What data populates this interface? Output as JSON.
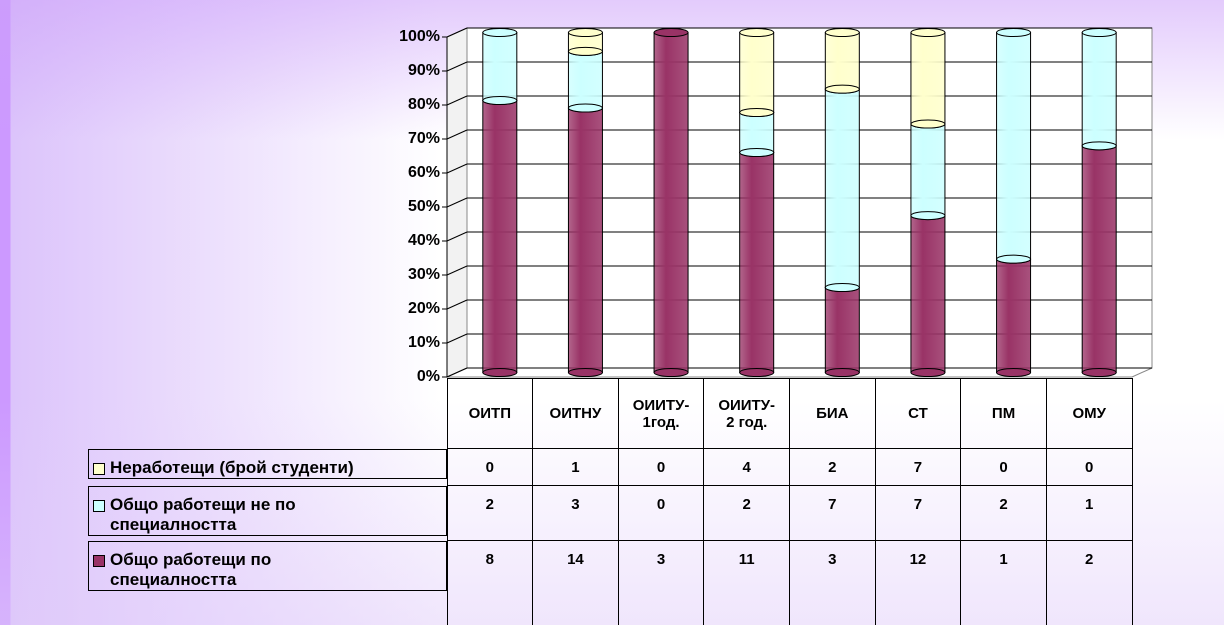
{
  "chart_data": {
    "type": "bar",
    "stacked_percent": true,
    "categories": [
      "ОИТП",
      "ОИТНУ",
      "ОИИТУ-\n1год.",
      "ОИИТУ-\n2 год.",
      "БИА",
      "СТ",
      "ПМ",
      "ОМУ"
    ],
    "series": [
      {
        "name": "Неработещи (брой студенти)",
        "color": "#ffffcc",
        "values": [
          0,
          1,
          0,
          4,
          2,
          7,
          0,
          0
        ]
      },
      {
        "name": "Общо работещи не по\nспециалността",
        "color": "#ccffff",
        "values": [
          2,
          3,
          0,
          2,
          7,
          7,
          2,
          1
        ]
      },
      {
        "name": "Общо работещи по\nспециалността",
        "color": "#993366",
        "values": [
          8,
          14,
          3,
          11,
          3,
          12,
          1,
          2
        ]
      }
    ],
    "ylim": [
      0,
      100
    ],
    "yticks": [
      {
        "value": 0,
        "label": "0%"
      },
      {
        "value": 10,
        "label": "10%"
      },
      {
        "value": 20,
        "label": "20%"
      },
      {
        "value": 30,
        "label": "30%"
      },
      {
        "value": 40,
        "label": "40%"
      },
      {
        "value": 50,
        "label": "50%"
      },
      {
        "value": 60,
        "label": "60%"
      },
      {
        "value": 70,
        "label": "70%"
      },
      {
        "value": 80,
        "label": "80%"
      },
      {
        "value": 90,
        "label": "90%"
      },
      {
        "value": 100,
        "label": "100%"
      }
    ],
    "grid": true
  }
}
